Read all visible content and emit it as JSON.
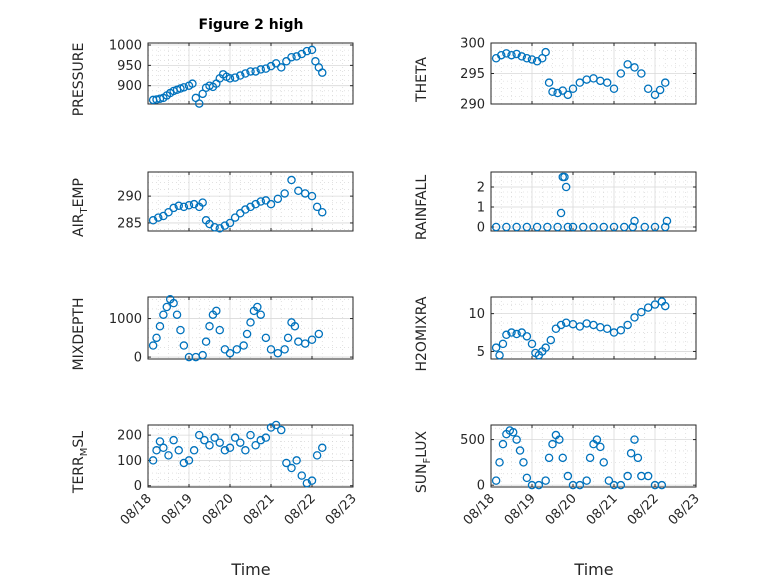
{
  "figure": {
    "title": "Figure 2 high",
    "xlabel": "Time",
    "x_ticks": [
      "08/18",
      "08/19",
      "08/20",
      "08/21",
      "08/22",
      "08/23"
    ]
  },
  "chart_data": [
    {
      "type": "scatter",
      "ylabel": "PRESSURE",
      "ylim": [
        855,
        1005
      ],
      "yticks": [
        900,
        950,
        1000
      ],
      "ytick_labels": [
        "900",
        "950",
        "1000"
      ],
      "xlim": [
        "08/18",
        "08/23"
      ],
      "grid": true,
      "x": [
        "08/18 03:00",
        "08/18 05:00",
        "08/18 07:00",
        "08/18 09:00",
        "08/18 11:00",
        "08/18 13:00",
        "08/18 15:00",
        "08/18 17:00",
        "08/18 19:00",
        "08/18 21:00",
        "08/19 00:00",
        "08/19 02:00",
        "08/19 04:00",
        "08/19 06:00",
        "08/19 08:00",
        "08/19 10:00",
        "08/19 12:00",
        "08/19 14:00",
        "08/19 16:00",
        "08/19 18:00",
        "08/19 20:00",
        "08/19 22:00",
        "08/20 00:00",
        "08/20 03:00",
        "08/20 06:00",
        "08/20 09:00",
        "08/20 12:00",
        "08/20 15:00",
        "08/20 18:00",
        "08/20 21:00",
        "08/21 00:00",
        "08/21 03:00",
        "08/21 06:00",
        "08/21 09:00",
        "08/21 12:00",
        "08/21 15:00",
        "08/21 18:00",
        "08/21 21:00",
        "08/22 00:00",
        "08/22 02:00",
        "08/22 04:00",
        "08/22 06:00"
      ],
      "values": [
        865,
        866,
        868,
        870,
        876,
        882,
        887,
        890,
        893,
        896,
        900,
        905,
        870,
        856,
        880,
        895,
        900,
        897,
        905,
        918,
        928,
        922,
        918,
        920,
        925,
        930,
        935,
        935,
        940,
        942,
        948,
        955,
        945,
        960,
        970,
        972,
        978,
        985,
        988,
        960,
        945,
        932
      ]
    },
    {
      "type": "scatter",
      "ylabel": "THETA",
      "ylim": [
        290,
        300
      ],
      "yticks": [
        290,
        295,
        300
      ],
      "ytick_labels": [
        "290",
        "295",
        "300"
      ],
      "xlim": [
        "08/18",
        "08/23"
      ],
      "grid": true,
      "x": [
        "08/18 03:00",
        "08/18 06:00",
        "08/18 09:00",
        "08/18 12:00",
        "08/18 15:00",
        "08/18 18:00",
        "08/18 21:00",
        "08/19 00:00",
        "08/19 03:00",
        "08/19 06:00",
        "08/19 08:00",
        "08/19 10:00",
        "08/19 12:00",
        "08/19 15:00",
        "08/19 18:00",
        "08/19 21:00",
        "08/20 00:00",
        "08/20 04:00",
        "08/20 08:00",
        "08/20 12:00",
        "08/20 16:00",
        "08/20 20:00",
        "08/21 00:00",
        "08/21 04:00",
        "08/21 08:00",
        "08/21 12:00",
        "08/21 16:00",
        "08/21 20:00",
        "08/22 00:00",
        "08/22 03:00",
        "08/22 06:00"
      ],
      "values": [
        297.5,
        298.0,
        298.3,
        298.0,
        298.2,
        297.8,
        297.5,
        297.3,
        297.0,
        297.5,
        298.5,
        293.5,
        292.0,
        291.8,
        292.2,
        291.5,
        292.5,
        293.5,
        294.0,
        294.2,
        293.8,
        293.5,
        292.5,
        295.0,
        296.5,
        296.0,
        295.0,
        292.5,
        291.5,
        292.3,
        293.5
      ]
    },
    {
      "type": "scatter",
      "ylabel": "AIR_TEMP",
      "ylim": [
        283.5,
        294.5
      ],
      "yticks": [
        285,
        290
      ],
      "ytick_labels": [
        "285",
        "290"
      ],
      "xlim": [
        "08/18",
        "08/23"
      ],
      "grid": true,
      "x": [
        "08/18 03:00",
        "08/18 06:00",
        "08/18 09:00",
        "08/18 12:00",
        "08/18 15:00",
        "08/18 18:00",
        "08/18 21:00",
        "08/19 00:00",
        "08/19 03:00",
        "08/19 06:00",
        "08/19 08:00",
        "08/19 10:00",
        "08/19 12:00",
        "08/19 15:00",
        "08/19 18:00",
        "08/19 21:00",
        "08/20 00:00",
        "08/20 03:00",
        "08/20 06:00",
        "08/20 09:00",
        "08/20 12:00",
        "08/20 15:00",
        "08/20 18:00",
        "08/20 21:00",
        "08/21 00:00",
        "08/21 04:00",
        "08/21 08:00",
        "08/21 12:00",
        "08/21 16:00",
        "08/21 20:00",
        "08/22 00:00",
        "08/22 03:00",
        "08/22 06:00"
      ],
      "values": [
        285.5,
        286.0,
        286.3,
        287.0,
        287.8,
        288.2,
        288.0,
        288.3,
        288.5,
        288.0,
        288.8,
        285.5,
        284.8,
        284.2,
        284.0,
        284.5,
        285.0,
        286.0,
        286.8,
        287.5,
        288.0,
        288.5,
        289.0,
        289.2,
        288.5,
        289.5,
        290.5,
        293.0,
        291.0,
        290.5,
        290.0,
        288.0,
        287.0
      ]
    },
    {
      "type": "scatter",
      "ylabel": "RAINFALL",
      "ylim": [
        -0.2,
        2.75
      ],
      "yticks": [
        0,
        1,
        2
      ],
      "ytick_labels": [
        "0",
        "1",
        "2"
      ],
      "xlim": [
        "08/18",
        "08/23"
      ],
      "grid": true,
      "x": [
        "08/18 03:00",
        "08/18 09:00",
        "08/18 15:00",
        "08/18 21:00",
        "08/19 03:00",
        "08/19 09:00",
        "08/19 15:00",
        "08/19 17:00",
        "08/19 18:00",
        "08/19 19:00",
        "08/19 20:00",
        "08/19 21:00",
        "08/20 00:00",
        "08/20 06:00",
        "08/20 12:00",
        "08/20 18:00",
        "08/21 00:00",
        "08/21 06:00",
        "08/21 11:00",
        "08/21 12:00",
        "08/21 18:00",
        "08/22 00:00",
        "08/22 06:00",
        "08/22 07:00"
      ],
      "values": [
        0,
        0,
        0,
        0,
        0,
        0,
        0,
        0.7,
        2.5,
        2.5,
        2.0,
        0,
        0,
        0,
        0,
        0,
        0,
        0,
        0,
        0.3,
        0,
        0,
        0,
        0.3
      ]
    },
    {
      "type": "scatter",
      "ylabel": "MIXDEPTH",
      "ylim": [
        -50,
        1560
      ],
      "yticks": [
        0,
        1000
      ],
      "ytick_labels": [
        "0",
        "1000"
      ],
      "xlim": [
        "08/18",
        "08/23"
      ],
      "grid": true,
      "x": [
        "08/18 03:00",
        "08/18 05:00",
        "08/18 07:00",
        "08/18 09:00",
        "08/18 11:00",
        "08/18 13:00",
        "08/18 15:00",
        "08/18 17:00",
        "08/18 19:00",
        "08/18 21:00",
        "08/19 00:00",
        "08/19 04:00",
        "08/19 08:00",
        "08/19 10:00",
        "08/19 12:00",
        "08/19 14:00",
        "08/19 16:00",
        "08/19 18:00",
        "08/19 21:00",
        "08/20 00:00",
        "08/20 04:00",
        "08/20 08:00",
        "08/20 10:00",
        "08/20 12:00",
        "08/20 14:00",
        "08/20 16:00",
        "08/20 18:00",
        "08/20 21:00",
        "08/21 00:00",
        "08/21 04:00",
        "08/21 08:00",
        "08/21 10:00",
        "08/21 12:00",
        "08/21 14:00",
        "08/21 16:00",
        "08/21 20:00",
        "08/22 00:00",
        "08/22 04:00"
      ],
      "values": [
        300,
        500,
        800,
        1100,
        1300,
        1500,
        1400,
        1100,
        700,
        300,
        0,
        0,
        50,
        400,
        800,
        1100,
        1200,
        700,
        200,
        100,
        200,
        300,
        600,
        900,
        1200,
        1300,
        1100,
        500,
        200,
        100,
        200,
        500,
        900,
        800,
        400,
        350,
        450,
        600
      ]
    },
    {
      "type": "scatter",
      "ylabel": "H2OMIXRA",
      "ylim": [
        4,
        12.2
      ],
      "yticks": [
        5,
        10
      ],
      "ytick_labels": [
        "5",
        "10"
      ],
      "xlim": [
        "08/18",
        "08/23"
      ],
      "grid": true,
      "x": [
        "08/18 03:00",
        "08/18 05:00",
        "08/18 07:00",
        "08/18 09:00",
        "08/18 12:00",
        "08/18 15:00",
        "08/18 18:00",
        "08/18 21:00",
        "08/19 00:00",
        "08/19 02:00",
        "08/19 04:00",
        "08/19 06:00",
        "08/19 08:00",
        "08/19 11:00",
        "08/19 14:00",
        "08/19 17:00",
        "08/19 20:00",
        "08/20 00:00",
        "08/20 04:00",
        "08/20 08:00",
        "08/20 12:00",
        "08/20 16:00",
        "08/20 20:00",
        "08/21 00:00",
        "08/21 04:00",
        "08/21 08:00",
        "08/21 12:00",
        "08/21 16:00",
        "08/21 20:00",
        "08/22 00:00",
        "08/22 04:00",
        "08/22 06:00"
      ],
      "values": [
        5.5,
        4.5,
        6.0,
        7.2,
        7.5,
        7.3,
        7.5,
        7.0,
        6.0,
        4.8,
        4.5,
        5.0,
        5.5,
        6.5,
        8.0,
        8.5,
        8.8,
        8.6,
        8.3,
        8.7,
        8.5,
        8.2,
        8.0,
        7.5,
        7.8,
        8.5,
        9.5,
        10.2,
        10.8,
        11.2,
        11.6,
        11.0
      ]
    },
    {
      "type": "scatter",
      "ylabel": "TERR_MSL",
      "ylim": [
        -5,
        240
      ],
      "yticks": [
        0,
        100,
        200
      ],
      "ytick_labels": [
        "0",
        "100",
        "200"
      ],
      "xlim": [
        "08/18",
        "08/23"
      ],
      "grid": true,
      "x": [
        "08/18 03:00",
        "08/18 05:00",
        "08/18 07:00",
        "08/18 09:00",
        "08/18 12:00",
        "08/18 15:00",
        "08/18 18:00",
        "08/18 21:00",
        "08/19 00:00",
        "08/19 03:00",
        "08/19 06:00",
        "08/19 09:00",
        "08/19 12:00",
        "08/19 15:00",
        "08/19 18:00",
        "08/19 21:00",
        "08/20 00:00",
        "08/20 03:00",
        "08/20 06:00",
        "08/20 09:00",
        "08/20 12:00",
        "08/20 15:00",
        "08/20 18:00",
        "08/20 21:00",
        "08/21 00:00",
        "08/21 03:00",
        "08/21 06:00",
        "08/21 09:00",
        "08/21 12:00",
        "08/21 15:00",
        "08/21 18:00",
        "08/21 21:00",
        "08/22 00:00",
        "08/22 03:00",
        "08/22 06:00"
      ],
      "values": [
        100,
        140,
        175,
        150,
        120,
        180,
        140,
        90,
        100,
        140,
        200,
        180,
        160,
        190,
        170,
        140,
        150,
        190,
        170,
        140,
        200,
        160,
        180,
        190,
        230,
        240,
        220,
        90,
        70,
        100,
        40,
        10,
        20,
        120,
        150
      ]
    },
    {
      "type": "scatter",
      "ylabel": "SUN_FLUX",
      "ylim": [
        -20,
        660
      ],
      "yticks": [
        0,
        500
      ],
      "ytick_labels": [
        "0",
        "500"
      ],
      "xlim": [
        "08/18",
        "08/23"
      ],
      "grid": true,
      "x": [
        "08/18 03:00",
        "08/18 05:00",
        "08/18 07:00",
        "08/18 09:00",
        "08/18 11:00",
        "08/18 13:00",
        "08/18 15:00",
        "08/18 17:00",
        "08/18 19:00",
        "08/18 21:00",
        "08/19 00:00",
        "08/19 04:00",
        "08/19 08:00",
        "08/19 10:00",
        "08/19 12:00",
        "08/19 14:00",
        "08/19 16:00",
        "08/19 18:00",
        "08/19 21:00",
        "08/20 00:00",
        "08/20 04:00",
        "08/20 08:00",
        "08/20 10:00",
        "08/20 12:00",
        "08/20 14:00",
        "08/20 16:00",
        "08/20 18:00",
        "08/20 21:00",
        "08/21 00:00",
        "08/21 04:00",
        "08/21 08:00",
        "08/21 10:00",
        "08/21 12:00",
        "08/21 14:00",
        "08/21 16:00",
        "08/21 20:00",
        "08/22 00:00",
        "08/22 04:00"
      ],
      "values": [
        50,
        250,
        450,
        560,
        600,
        580,
        500,
        380,
        250,
        80,
        0,
        0,
        50,
        300,
        450,
        550,
        500,
        300,
        100,
        0,
        0,
        50,
        300,
        450,
        500,
        420,
        250,
        50,
        0,
        0,
        100,
        350,
        500,
        300,
        100,
        100,
        0,
        0
      ]
    }
  ]
}
